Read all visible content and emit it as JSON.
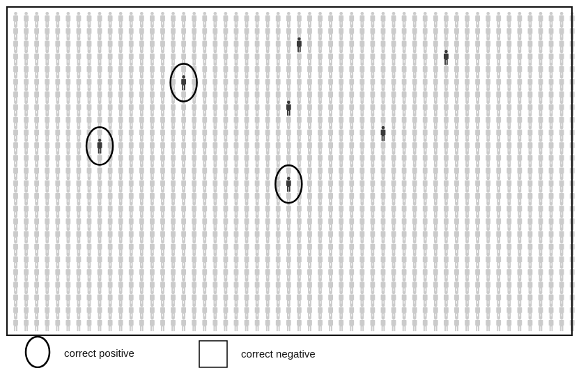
{
  "colors": {
    "crowd": "#cbcbcb",
    "highlight": "#3a3a3a",
    "frame": "#111111",
    "marker": "#000000"
  },
  "icons": {
    "crowd": "person-icon",
    "highlight": "person-icon",
    "correct_positive": "ellipse-marker",
    "correct_negative": "square-marker"
  },
  "legend": {
    "correct_positive": "correct positive",
    "correct_negative": "correct negative"
  },
  "grid": {
    "columns": 54,
    "rows": 25
  },
  "highlighted_people": [
    {
      "col": 27,
      "row": 2,
      "marked": "none"
    },
    {
      "col": 41,
      "row": 3,
      "marked": "none"
    },
    {
      "col": 16,
      "row": 5,
      "marked": "correct_positive"
    },
    {
      "col": 26,
      "row": 7,
      "marked": "none"
    },
    {
      "col": 35,
      "row": 9,
      "marked": "none"
    },
    {
      "col": 8,
      "row": 10,
      "marked": "correct_positive"
    },
    {
      "col": 26,
      "row": 13,
      "marked": "correct_positive"
    }
  ]
}
